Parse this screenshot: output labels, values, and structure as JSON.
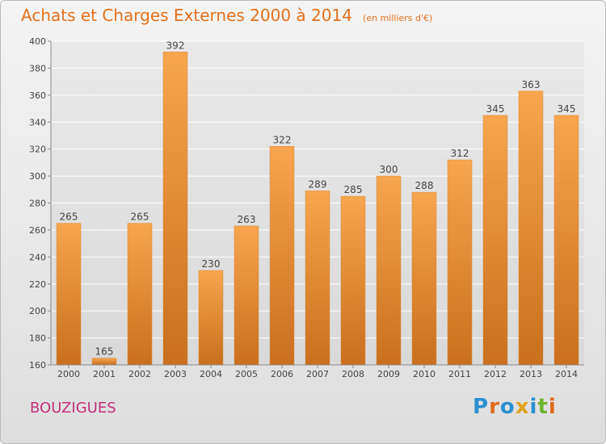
{
  "header": {
    "title": "Achats et Charges Externes 2000 à 2014",
    "subtitle": "(en milliers d'€)"
  },
  "footer": {
    "commune": "BOUZIGUES",
    "logo_letters": [
      "P",
      "r",
      "o",
      "x",
      "i",
      "t",
      "i"
    ],
    "logo_colors": [
      "#2a8fd0",
      "#e06a1c",
      "#2a8fd0",
      "#e0a21c",
      "#2a8fd0",
      "#6cb52d",
      "#e06a1c"
    ]
  },
  "colors": {
    "bar_light": "#f7a54e",
    "bar_dark": "#c96f1d",
    "axis": "#888888",
    "grid": "#ffffff",
    "text": "#444444",
    "title": "#e5701a",
    "commune": "#c2317a"
  },
  "chart_data": {
    "type": "bar",
    "title": "Achats et Charges Externes 2000 à 2014",
    "subtitle": "(en milliers d'€)",
    "categories": [
      "2000",
      "2001",
      "2002",
      "2003",
      "2004",
      "2005",
      "2006",
      "2007",
      "2008",
      "2009",
      "2010",
      "2011",
      "2012",
      "2013",
      "2014"
    ],
    "values": [
      265,
      165,
      265,
      392,
      230,
      263,
      322,
      289,
      285,
      300,
      288,
      312,
      345,
      363,
      345
    ],
    "ylim": [
      160,
      400
    ],
    "yticks": [
      160,
      180,
      200,
      220,
      240,
      260,
      280,
      300,
      320,
      340,
      360,
      380,
      400
    ],
    "grid": true,
    "xlabel": "",
    "ylabel": ""
  }
}
